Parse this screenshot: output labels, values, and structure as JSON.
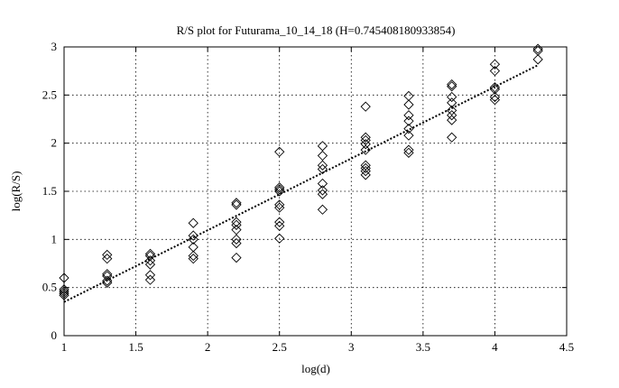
{
  "chart_data": {
    "type": "scatter",
    "title": "R/S plot for Futurama_10_14_18 (H=0.745408180933854)",
    "xlabel": "log(d)",
    "ylabel": "log(R/S)",
    "xlim": [
      1,
      4.5
    ],
    "ylim": [
      0,
      3
    ],
    "xticks": [
      1,
      1.5,
      2,
      2.5,
      3,
      3.5,
      4,
      4.5
    ],
    "xtick_labels": [
      "1",
      "1.5",
      "2",
      "2.5",
      "3",
      "3.5",
      "4",
      "4.5"
    ],
    "yticks": [
      0,
      0.5,
      1,
      1.5,
      2,
      2.5,
      3
    ],
    "ytick_labels": [
      "0",
      "0.5",
      "1",
      "1.5",
      "2",
      "2.5",
      "3"
    ],
    "grid": true,
    "marker": "diamond",
    "points": [
      [
        1.0,
        0.6
      ],
      [
        1.0,
        0.48
      ],
      [
        1.0,
        0.46
      ],
      [
        1.0,
        0.44
      ],
      [
        1.0,
        0.42
      ],
      [
        1.3,
        0.84
      ],
      [
        1.3,
        0.8
      ],
      [
        1.3,
        0.64
      ],
      [
        1.3,
        0.62
      ],
      [
        1.3,
        0.57
      ],
      [
        1.3,
        0.55
      ],
      [
        1.6,
        0.85
      ],
      [
        1.6,
        0.83
      ],
      [
        1.6,
        0.78
      ],
      [
        1.6,
        0.74
      ],
      [
        1.6,
        0.63
      ],
      [
        1.6,
        0.58
      ],
      [
        1.9,
        1.17
      ],
      [
        1.9,
        1.04
      ],
      [
        1.9,
        1.0
      ],
      [
        1.9,
        0.92
      ],
      [
        1.9,
        0.83
      ],
      [
        1.9,
        0.8
      ],
      [
        2.2,
        1.38
      ],
      [
        2.2,
        1.36
      ],
      [
        2.2,
        1.18
      ],
      [
        2.2,
        1.15
      ],
      [
        2.2,
        1.1
      ],
      [
        2.2,
        1.0
      ],
      [
        2.2,
        0.96
      ],
      [
        2.2,
        0.81
      ],
      [
        2.5,
        1.91
      ],
      [
        2.5,
        1.54
      ],
      [
        2.5,
        1.52
      ],
      [
        2.5,
        1.5
      ],
      [
        2.5,
        1.36
      ],
      [
        2.5,
        1.33
      ],
      [
        2.5,
        1.18
      ],
      [
        2.5,
        1.14
      ],
      [
        2.5,
        1.01
      ],
      [
        2.8,
        1.97
      ],
      [
        2.8,
        1.87
      ],
      [
        2.8,
        1.77
      ],
      [
        2.8,
        1.73
      ],
      [
        2.8,
        1.58
      ],
      [
        2.8,
        1.51
      ],
      [
        2.8,
        1.47
      ],
      [
        2.8,
        1.31
      ],
      [
        3.1,
        2.38
      ],
      [
        3.1,
        2.06
      ],
      [
        3.1,
        2.03
      ],
      [
        3.1,
        1.99
      ],
      [
        3.1,
        1.93
      ],
      [
        3.1,
        1.77
      ],
      [
        3.1,
        1.74
      ],
      [
        3.1,
        1.71
      ],
      [
        3.1,
        1.67
      ],
      [
        3.4,
        2.49
      ],
      [
        3.4,
        2.4
      ],
      [
        3.4,
        2.29
      ],
      [
        3.4,
        2.23
      ],
      [
        3.4,
        2.15
      ],
      [
        3.4,
        2.08
      ],
      [
        3.4,
        1.93
      ],
      [
        3.4,
        1.9
      ],
      [
        3.7,
        2.61
      ],
      [
        3.7,
        2.59
      ],
      [
        3.7,
        2.48
      ],
      [
        3.7,
        2.42
      ],
      [
        3.7,
        2.34
      ],
      [
        3.7,
        2.29
      ],
      [
        3.7,
        2.24
      ],
      [
        3.7,
        2.06
      ],
      [
        4.0,
        2.82
      ],
      [
        4.0,
        2.75
      ],
      [
        4.0,
        2.58
      ],
      [
        4.0,
        2.56
      ],
      [
        4.0,
        2.48
      ],
      [
        4.0,
        2.45
      ],
      [
        4.3,
        2.98
      ],
      [
        4.3,
        2.96
      ],
      [
        4.3,
        2.87
      ]
    ],
    "fit_line": {
      "style": "dotted",
      "x": [
        1.0,
        4.3
      ],
      "y": [
        0.35,
        2.81
      ]
    }
  }
}
